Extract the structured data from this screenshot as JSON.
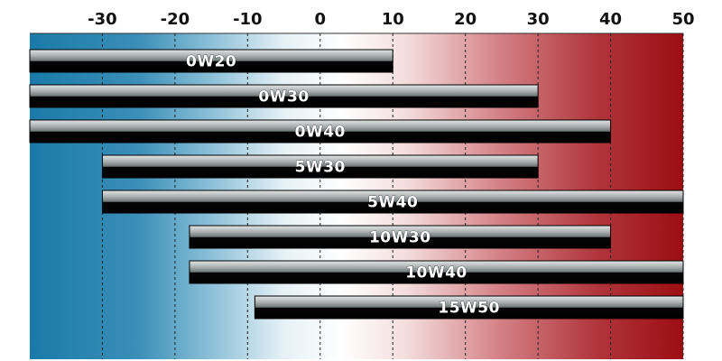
{
  "chart_data": {
    "type": "bar",
    "orientation": "horizontal-range",
    "title": "",
    "xlabel": "",
    "ylabel": "",
    "xlim": [
      -40,
      50
    ],
    "ticks": [
      -30,
      -20,
      -10,
      0,
      10,
      20,
      30,
      40,
      50
    ],
    "tick_labels": [
      "-30",
      "-20",
      "-10",
      "0",
      "10",
      "20",
      "30",
      "40",
      "50"
    ],
    "grid": "vertical dashed",
    "background_gradient": {
      "cold": "#1a7aa8",
      "neutral": "#ffffff",
      "hot": "#9c0d12"
    },
    "categories": [
      "0W20",
      "0W30",
      "0W40",
      "5W30",
      "5W40",
      "10W30",
      "10W40",
      "15W50"
    ],
    "ranges": [
      {
        "label": "0W20",
        "min": -40,
        "max": 10
      },
      {
        "label": "0W30",
        "min": -40,
        "max": 30
      },
      {
        "label": "0W40",
        "min": -40,
        "max": 40
      },
      {
        "label": "5W30",
        "min": -30,
        "max": 30
      },
      {
        "label": "5W40",
        "min": -30,
        "max": 50
      },
      {
        "label": "10W30",
        "min": -18,
        "max": 40
      },
      {
        "label": "10W40",
        "min": -18,
        "max": 50
      },
      {
        "label": "15W50",
        "min": -9,
        "max": 50
      }
    ]
  }
}
